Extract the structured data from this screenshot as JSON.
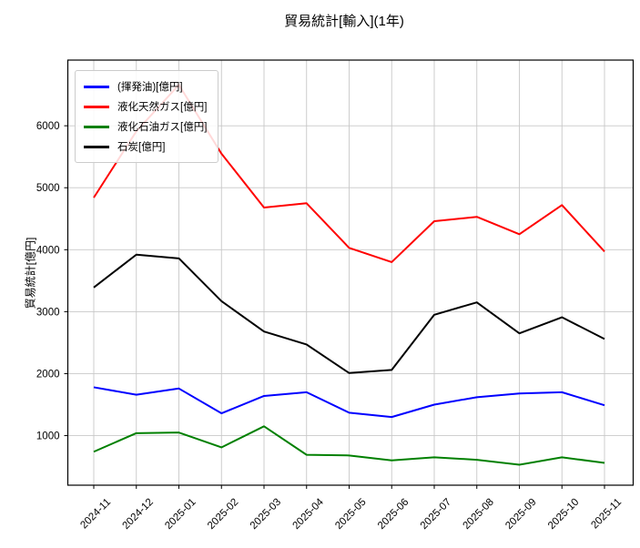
{
  "chart_data": {
    "type": "line",
    "title": "貿易統計[輸入](1年)",
    "ylabel": "貿易統計[億円]",
    "xlabel": "",
    "categories": [
      "2024-11",
      "2024-12",
      "2025-01",
      "2025-02",
      "2025-03",
      "2025-04",
      "2025-05",
      "2025-06",
      "2025-07",
      "2025-08",
      "2025-09",
      "2025-10",
      "2025-11"
    ],
    "series": [
      {
        "name": "(揮発油)[億円]",
        "color": "#0000ff",
        "values": [
          1780,
          1660,
          1760,
          1360,
          1640,
          1700,
          1370,
          1300,
          1500,
          1620,
          1680,
          1700,
          1490
        ]
      },
      {
        "name": "液化天然ガス[億円]",
        "color": "#ff0000",
        "values": [
          4840,
          5910,
          6660,
          5550,
          4680,
          4750,
          4030,
          3800,
          4460,
          4530,
          4250,
          4720,
          3970
        ]
      },
      {
        "name": "液化石油ガス[億円]",
        "color": "#008000",
        "values": [
          740,
          1040,
          1050,
          810,
          1150,
          690,
          680,
          600,
          650,
          610,
          530,
          650,
          560
        ]
      },
      {
        "name": "石炭[億円]",
        "color": "#000000",
        "values": [
          3390,
          3920,
          3860,
          3170,
          2680,
          2470,
          2010,
          2060,
          2950,
          3150,
          2650,
          2910,
          2560
        ]
      }
    ],
    "y_ticks": [
      1000,
      2000,
      3000,
      4000,
      5000,
      6000
    ],
    "ylim": [
      200,
      7060
    ],
    "grid": true,
    "grid_color": "#c8c8c8",
    "line_width": 2,
    "legend_position": "upper-left"
  }
}
